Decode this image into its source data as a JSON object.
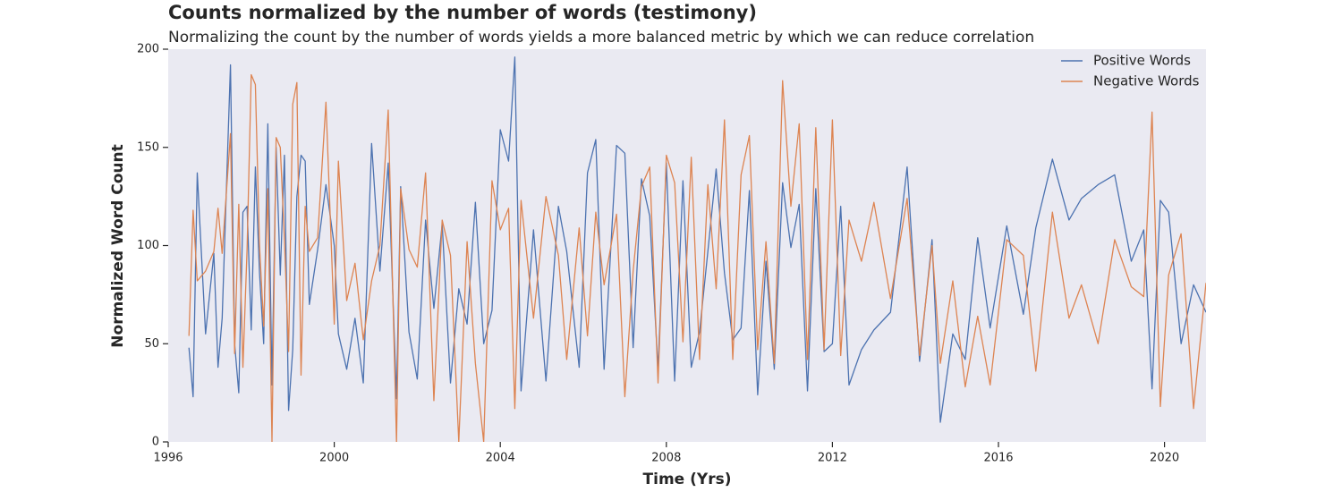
{
  "chart_data": {
    "type": "line",
    "title": "Counts normalized by the number of words (testimony)",
    "subtitle": "Normalizing the count by the number of words yields a more balanced metric by which we can reduce correlation",
    "x_label": "Time (Yrs)",
    "y_label": "Normalized Word Count",
    "x": [
      1996.5,
      1996.6,
      1996.7,
      1996.9,
      1997.1,
      1997.2,
      1997.3,
      1997.5,
      1997.6,
      1997.7,
      1997.8,
      1997.9,
      1998.0,
      1998.1,
      1998.2,
      1998.3,
      1998.4,
      1998.5,
      1998.6,
      1998.7,
      1998.8,
      1998.9,
      1999.0,
      1999.1,
      1999.2,
      1999.3,
      1999.4,
      1999.6,
      1999.8,
      2000.0,
      2000.1,
      2000.3,
      2000.5,
      2000.7,
      2000.9,
      2001.1,
      2001.3,
      2001.5,
      2001.6,
      2001.8,
      2002.0,
      2002.2,
      2002.4,
      2002.6,
      2002.8,
      2003.0,
      2003.2,
      2003.4,
      2003.6,
      2003.8,
      2004.0,
      2004.2,
      2004.35,
      2004.5,
      2004.8,
      2005.1,
      2005.4,
      2005.6,
      2005.9,
      2006.1,
      2006.3,
      2006.5,
      2006.8,
      2007.0,
      2007.2,
      2007.4,
      2007.6,
      2007.8,
      2008.0,
      2008.2,
      2008.4,
      2008.6,
      2008.8,
      2009.0,
      2009.2,
      2009.4,
      2009.6,
      2009.8,
      2010.0,
      2010.2,
      2010.4,
      2010.6,
      2010.8,
      2011.0,
      2011.2,
      2011.4,
      2011.6,
      2011.8,
      2012.0,
      2012.2,
      2012.4,
      2012.7,
      2013.0,
      2013.4,
      2013.8,
      2014.1,
      2014.4,
      2014.6,
      2014.9,
      2015.2,
      2015.5,
      2015.8,
      2016.2,
      2016.6,
      2016.9,
      2017.3,
      2017.7,
      2018.0,
      2018.4,
      2018.8,
      2019.2,
      2019.5,
      2019.7,
      2019.9,
      2020.1,
      2020.4,
      2020.7,
      2021.0
    ],
    "series": [
      {
        "name": "Positive Words",
        "color": "#4c72b0",
        "values": [
          48,
          23,
          137,
          55,
          96,
          38,
          63,
          192,
          50,
          25,
          117,
          120,
          57,
          140,
          86,
          50,
          162,
          29,
          150,
          85,
          146,
          16,
          47,
          125,
          146,
          143,
          70,
          98,
          131,
          100,
          55,
          37,
          63,
          30,
          152,
          87,
          142,
          22,
          130,
          56,
          32,
          113,
          68,
          111,
          30,
          78,
          60,
          122,
          50,
          67,
          159,
          143,
          196,
          26,
          108,
          31,
          120,
          97,
          38,
          137,
          154,
          37,
          151,
          147,
          48,
          134,
          115,
          37,
          142,
          31,
          133,
          38,
          56,
          97,
          139,
          86,
          52,
          58,
          128,
          24,
          92,
          37,
          132,
          99,
          121,
          26,
          129,
          46,
          50,
          120,
          29,
          47,
          57,
          66,
          140,
          41,
          103,
          10,
          55,
          42,
          104,
          58,
          110,
          65,
          109,
          144,
          113,
          124,
          131,
          136,
          92,
          108,
          27,
          123,
          117,
          50,
          80,
          66
        ]
      },
      {
        "name": "Negative Words",
        "color": "#dd8452",
        "values": [
          54,
          118,
          82,
          87,
          97,
          119,
          96,
          157,
          45,
          121,
          38,
          98,
          187,
          182,
          100,
          59,
          129,
          0,
          155,
          150,
          103,
          46,
          172,
          183,
          34,
          120,
          97,
          104,
          173,
          60,
          143,
          72,
          91,
          52,
          82,
          100,
          169,
          0,
          129,
          98,
          89,
          137,
          21,
          113,
          95,
          0,
          102,
          40,
          0,
          133,
          108,
          119,
          17,
          123,
          63,
          125,
          95,
          42,
          109,
          54,
          117,
          80,
          116,
          23,
          87,
          130,
          140,
          30,
          146,
          132,
          51,
          145,
          42,
          131,
          78,
          164,
          42,
          136,
          156,
          47,
          102,
          40,
          184,
          120,
          162,
          42,
          160,
          47,
          164,
          44,
          113,
          92,
          122,
          73,
          124,
          44,
          100,
          40,
          82,
          28,
          64,
          29,
          103,
          95,
          36,
          117,
          63,
          80,
          50,
          103,
          79,
          74,
          168,
          18,
          85,
          106,
          17,
          81
        ]
      }
    ],
    "xlim": [
      1996,
      2021
    ],
    "xticks": [
      1996,
      2000,
      2004,
      2008,
      2012,
      2016,
      2020
    ],
    "ylim": [
      0,
      200
    ],
    "yticks": [
      0,
      50,
      100,
      150,
      200
    ],
    "grid": false,
    "legend": "upper right"
  }
}
